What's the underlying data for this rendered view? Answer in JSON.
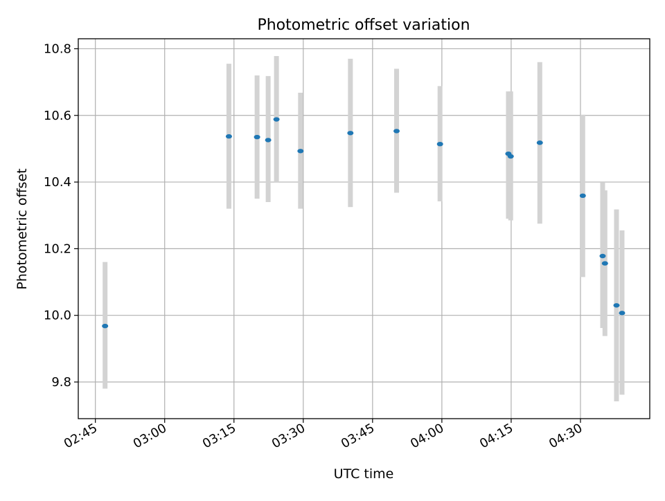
{
  "chart_data": {
    "type": "scatter",
    "title": "Photometric offset variation",
    "xlabel": "UTC time",
    "ylabel": "Photometric offset",
    "x_ticks": [
      "02:45",
      "03:00",
      "03:15",
      "03:30",
      "03:45",
      "04:00",
      "04:15",
      "04:30"
    ],
    "y_ticks": [
      "9.8",
      "10.0",
      "10.2",
      "10.4",
      "10.6",
      "10.8"
    ],
    "x_tick_minutes": [
      165,
      180,
      195,
      210,
      225,
      240,
      255,
      270
    ],
    "y_tick_values": [
      9.8,
      10.0,
      10.2,
      10.4,
      10.6,
      10.8
    ],
    "xlim_minutes": [
      161.3,
      285.0
    ],
    "ylim": [
      9.69,
      10.83
    ],
    "grid": true,
    "marker_color": "#1f77b4",
    "errorbar_color": "#d3d3d3",
    "points": [
      {
        "t": 167.1,
        "y": 9.968,
        "lo": 9.78,
        "hi": 10.16
      },
      {
        "t": 193.9,
        "y": 10.537,
        "lo": 10.32,
        "hi": 10.755
      },
      {
        "t": 200.0,
        "y": 10.535,
        "lo": 10.35,
        "hi": 10.72
      },
      {
        "t": 202.4,
        "y": 10.526,
        "lo": 10.34,
        "hi": 10.718
      },
      {
        "t": 204.2,
        "y": 10.588,
        "lo": 10.4,
        "hi": 10.778
      },
      {
        "t": 209.4,
        "y": 10.493,
        "lo": 10.32,
        "hi": 10.668
      },
      {
        "t": 220.2,
        "y": 10.547,
        "lo": 10.325,
        "hi": 10.77
      },
      {
        "t": 230.2,
        "y": 10.553,
        "lo": 10.368,
        "hi": 10.74
      },
      {
        "t": 239.6,
        "y": 10.514,
        "lo": 10.342,
        "hi": 10.688
      },
      {
        "t": 254.4,
        "y": 10.485,
        "lo": 10.29,
        "hi": 10.672
      },
      {
        "t": 254.9,
        "y": 10.477,
        "lo": 10.285,
        "hi": 10.672
      },
      {
        "t": 261.2,
        "y": 10.518,
        "lo": 10.275,
        "hi": 10.76
      },
      {
        "t": 270.5,
        "y": 10.359,
        "lo": 10.115,
        "hi": 10.602
      },
      {
        "t": 274.8,
        "y": 10.178,
        "lo": 9.962,
        "hi": 10.4
      },
      {
        "t": 275.3,
        "y": 10.156,
        "lo": 9.938,
        "hi": 10.375
      },
      {
        "t": 277.8,
        "y": 10.03,
        "lo": 9.742,
        "hi": 10.318
      },
      {
        "t": 279.0,
        "y": 10.007,
        "lo": 9.762,
        "hi": 10.255
      }
    ]
  }
}
